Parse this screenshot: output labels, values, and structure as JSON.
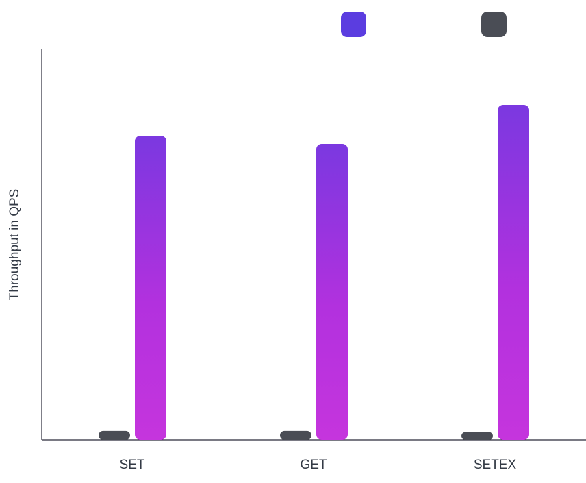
{
  "chart_data": {
    "type": "bar",
    "y_label": "Throughput in QPS",
    "categories": [
      "SET",
      "GET",
      "SETEX"
    ],
    "series": [
      {
        "color": "#4a4d55",
        "values": [
          2.3,
          2.3,
          2.0
        ]
      },
      {
        "color": "#5b3de0",
        "values": [
          77.9,
          75.8,
          85.8
        ]
      }
    ],
    "ylim": [
      0,
      100
    ]
  }
}
